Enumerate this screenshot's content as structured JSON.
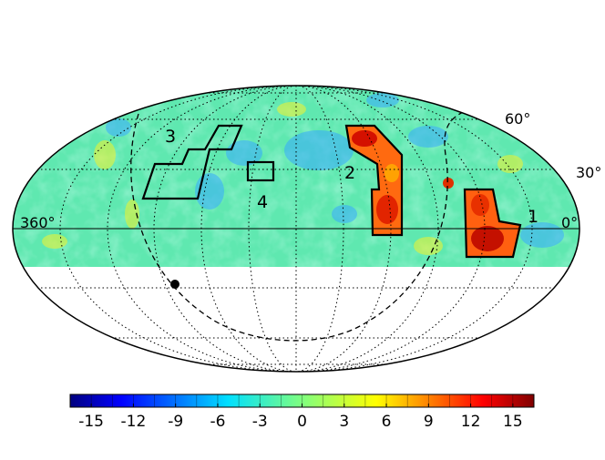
{
  "map": {
    "projection": "mollweide",
    "latitude_labels": [
      "60°",
      "30°"
    ],
    "longitude_labels": {
      "left": "360°",
      "right": "0°"
    },
    "masked_region": "southern declinations below about -15° are blank",
    "regions": [
      {
        "id": "1",
        "label": "1"
      },
      {
        "id": "2",
        "label": "2"
      },
      {
        "id": "3",
        "label": "3"
      },
      {
        "id": "4",
        "label": "4"
      }
    ],
    "marker": {
      "label": ""
    }
  },
  "colorbar": {
    "ticks": [
      "-15",
      "-12",
      "-9",
      "-6",
      "-3",
      "0",
      "3",
      "6",
      "9",
      "12",
      "15"
    ],
    "range": [
      -16.5,
      16.5
    ],
    "colormap": "jet",
    "colors": [
      "#00007f",
      "#0000ff",
      "#007fff",
      "#00ffff",
      "#7fff7f",
      "#ffff00",
      "#ff7f00",
      "#ff0000",
      "#7f0000"
    ]
  }
}
